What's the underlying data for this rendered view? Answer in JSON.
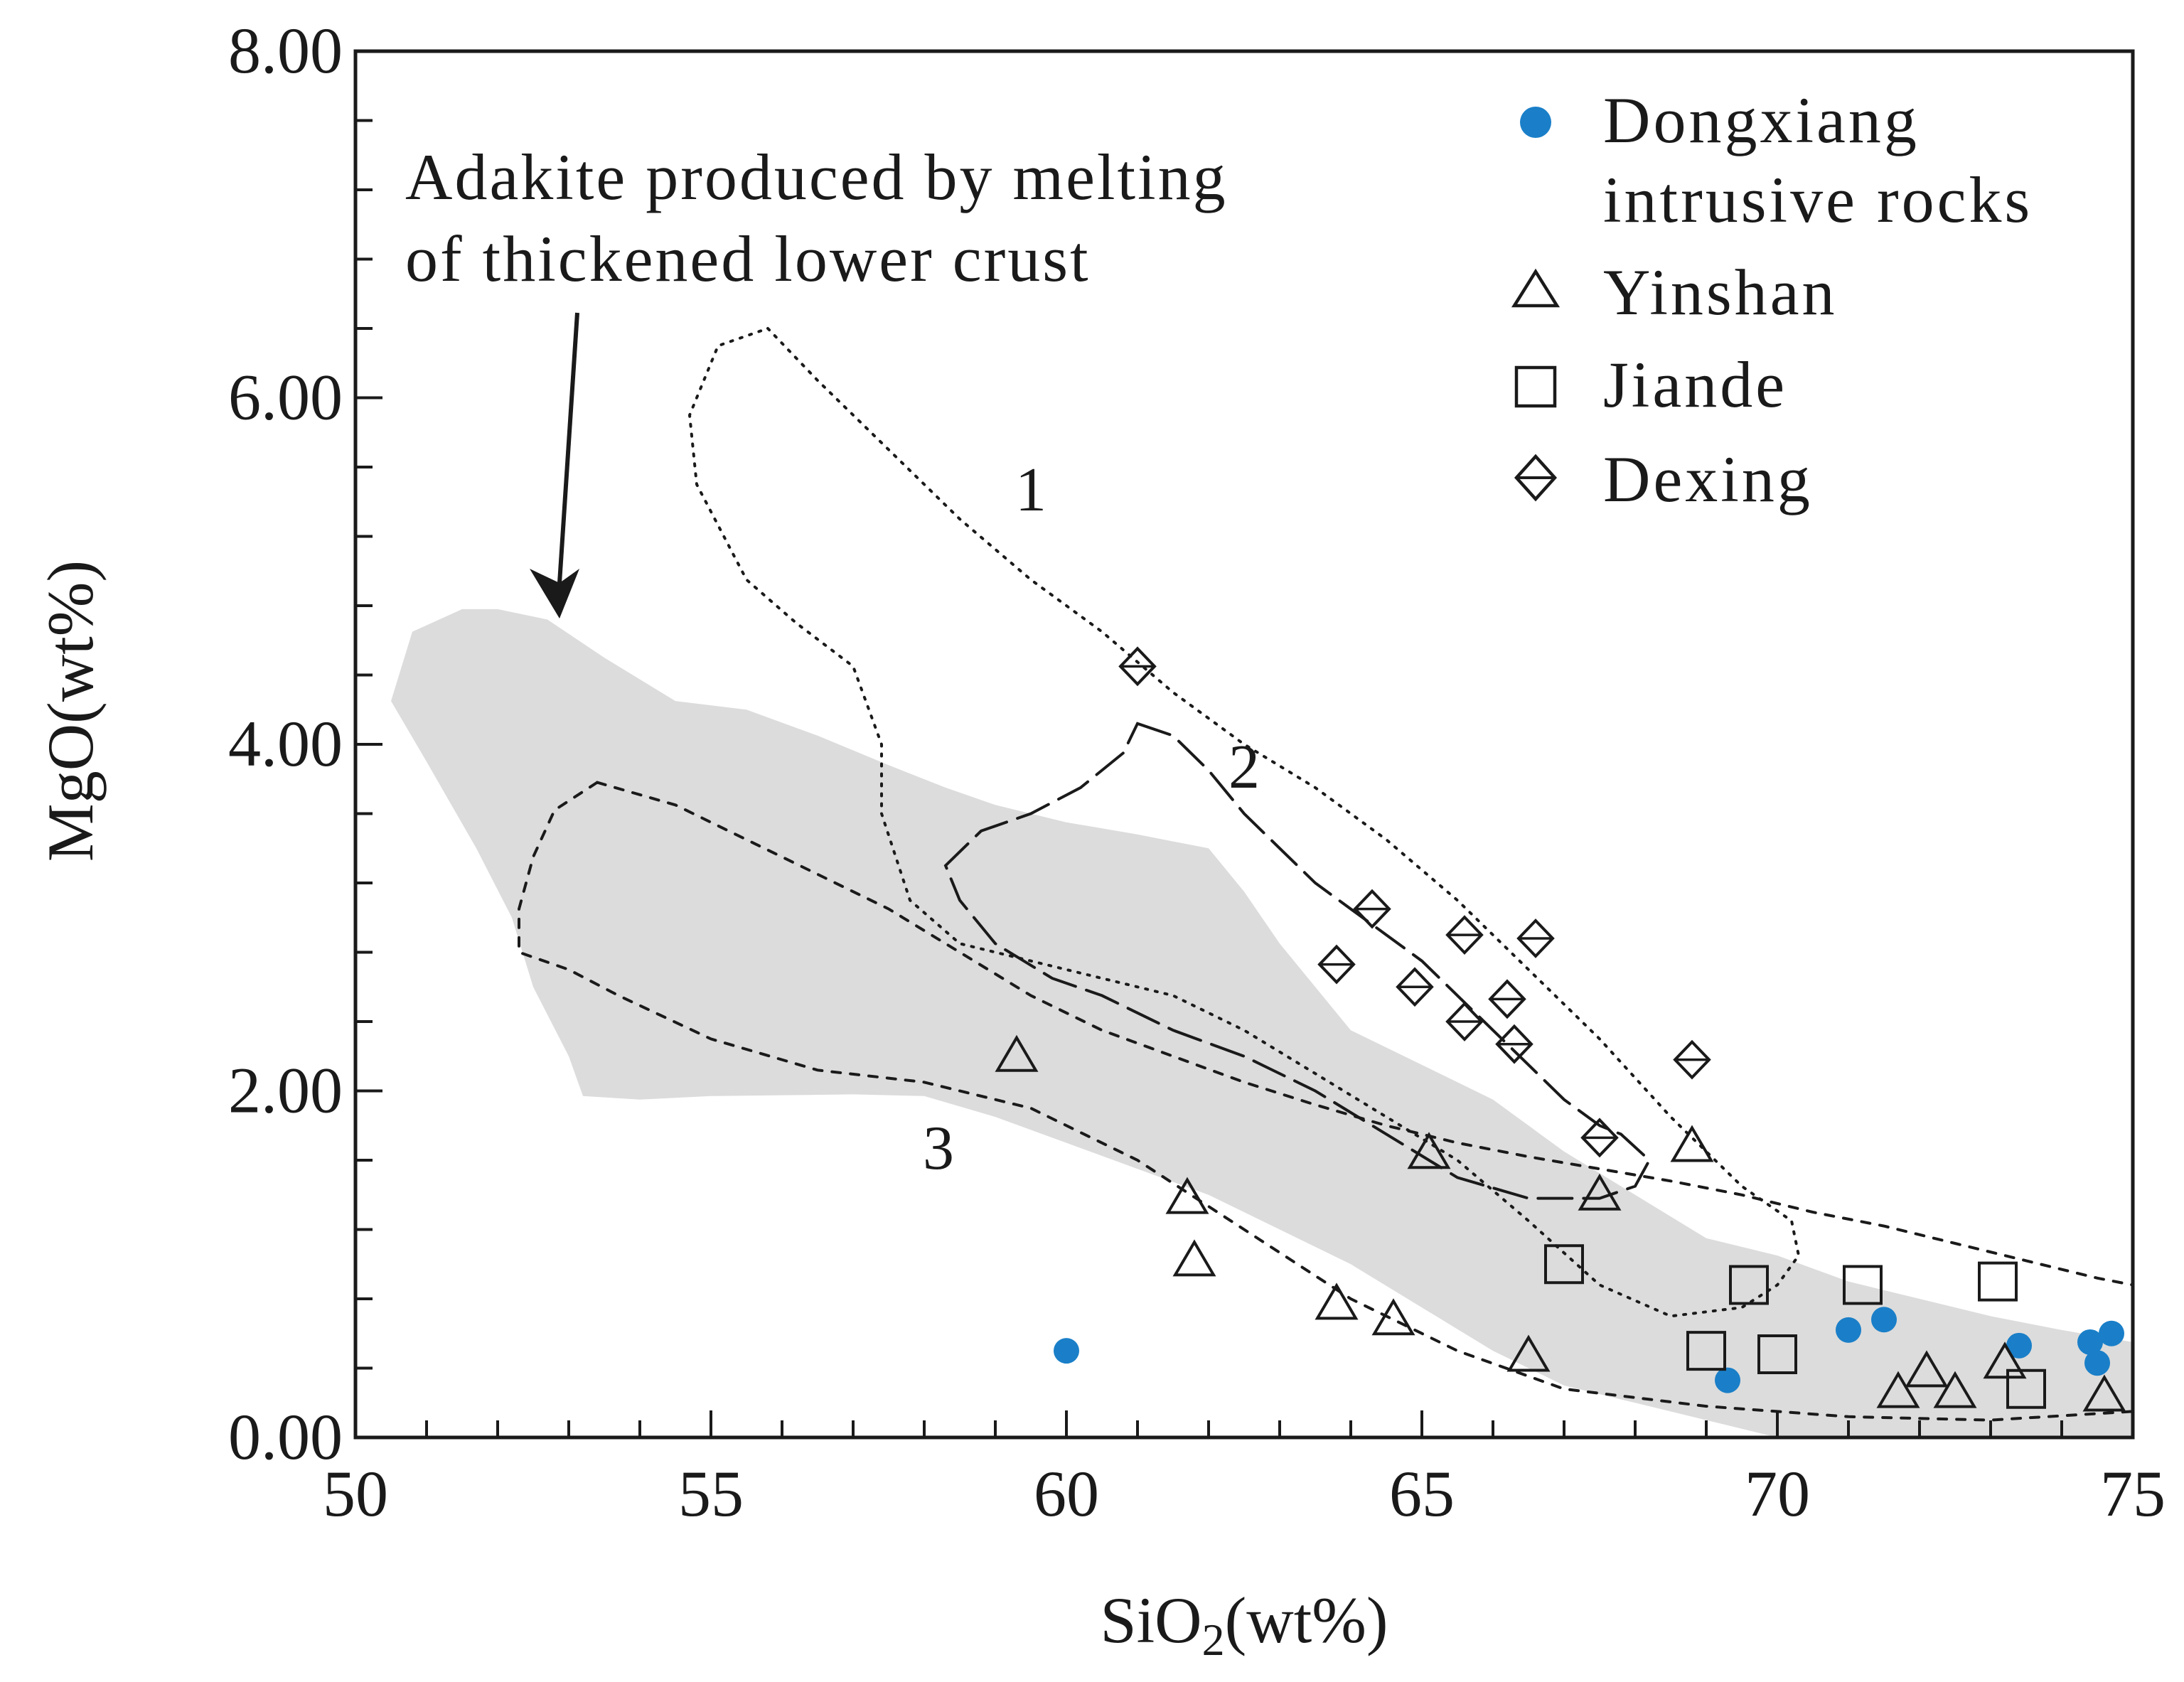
{
  "chart_data": {
    "type": "scatter",
    "xlabel": "SiO₂(wt%)",
    "ylabel": "MgO(wt%)",
    "xlim": [
      50,
      75
    ],
    "ylim": [
      0,
      8
    ],
    "x_ticks": [
      50,
      55,
      60,
      65,
      70,
      75
    ],
    "x_tick_labels": [
      "50",
      "55",
      "60",
      "65",
      "70",
      "75"
    ],
    "y_ticks": [
      0,
      2,
      4,
      6,
      8
    ],
    "y_tick_labels": [
      "0.00",
      "2.00",
      "4.00",
      "6.00",
      "8.00"
    ],
    "grid": false,
    "legend_position": "top-right",
    "annotation": {
      "lines": [
        "Adakite produced by melting",
        "of thickened lower crust"
      ]
    },
    "series": [
      {
        "name": "Dongxiang intrusive rocks",
        "legend_lines": [
          "Dongxiang",
          "intrusive rocks"
        ],
        "marker": "filled-circle",
        "color": "#1a7fc8",
        "points": [
          [
            60.0,
            0.5
          ],
          [
            69.3,
            0.33
          ],
          [
            71.0,
            0.62
          ],
          [
            71.5,
            0.68
          ],
          [
            73.4,
            0.53
          ],
          [
            74.4,
            0.55
          ],
          [
            74.5,
            0.43
          ],
          [
            74.7,
            0.6
          ]
        ]
      },
      {
        "name": "Yinshan",
        "legend_lines": [
          "Yinshan"
        ],
        "marker": "open-triangle",
        "color": "#1a1a1a",
        "points": [
          [
            59.3,
            2.2
          ],
          [
            61.7,
            1.38
          ],
          [
            61.8,
            1.02
          ],
          [
            63.8,
            0.77
          ],
          [
            64.6,
            0.68
          ],
          [
            65.1,
            1.64
          ],
          [
            66.5,
            0.47
          ],
          [
            67.5,
            1.4
          ],
          [
            68.8,
            1.68
          ],
          [
            71.7,
            0.26
          ],
          [
            72.1,
            0.38
          ],
          [
            72.5,
            0.26
          ],
          [
            73.2,
            0.43
          ],
          [
            74.6,
            0.24
          ]
        ]
      },
      {
        "name": "Jiande",
        "legend_lines": [
          "Jiande"
        ],
        "marker": "open-square",
        "color": "#1a1a1a",
        "points": [
          [
            67.0,
            1.0
          ],
          [
            69.0,
            0.5
          ],
          [
            69.6,
            0.88
          ],
          [
            70.0,
            0.48
          ],
          [
            71.2,
            0.88
          ],
          [
            73.1,
            0.9
          ],
          [
            73.5,
            0.28
          ]
        ]
      },
      {
        "name": "Dexing",
        "legend_lines": [
          "Dexing"
        ],
        "marker": "open-diamond",
        "color": "#1a1a1a",
        "points": [
          [
            61.0,
            4.45
          ],
          [
            63.8,
            2.73
          ],
          [
            64.3,
            3.05
          ],
          [
            64.9,
            2.6
          ],
          [
            65.6,
            2.9
          ],
          [
            65.6,
            2.4
          ],
          [
            66.2,
            2.53
          ],
          [
            66.3,
            2.27
          ],
          [
            66.6,
            2.88
          ],
          [
            67.5,
            1.73
          ],
          [
            68.8,
            2.18
          ]
        ]
      }
    ],
    "regions": [
      {
        "label": "Adakite field",
        "style": "filled-gray",
        "color": "#dcdcdc",
        "polygon": [
          [
            50.5,
            4.25
          ],
          [
            50.8,
            4.65
          ],
          [
            51.5,
            4.78
          ],
          [
            52.0,
            4.78
          ],
          [
            52.7,
            4.72
          ],
          [
            53.5,
            4.5
          ],
          [
            54.5,
            4.25
          ],
          [
            55.5,
            4.2
          ],
          [
            56.5,
            4.05
          ],
          [
            57.5,
            3.88
          ],
          [
            58.3,
            3.75
          ],
          [
            59.0,
            3.65
          ],
          [
            60.0,
            3.55
          ],
          [
            61.0,
            3.48
          ],
          [
            62.0,
            3.4
          ],
          [
            62.5,
            3.15
          ],
          [
            63.0,
            2.85
          ],
          [
            63.5,
            2.6
          ],
          [
            64.0,
            2.35
          ],
          [
            65.0,
            2.15
          ],
          [
            66.0,
            1.95
          ],
          [
            67.0,
            1.65
          ],
          [
            68.0,
            1.4
          ],
          [
            69.0,
            1.15
          ],
          [
            70.0,
            1.05
          ],
          [
            71.0,
            0.9
          ],
          [
            72.0,
            0.8
          ],
          [
            73.0,
            0.7
          ],
          [
            74.0,
            0.62
          ],
          [
            75.0,
            0.55
          ],
          [
            75.0,
            0.0
          ],
          [
            70.0,
            0.0
          ],
          [
            69.0,
            0.1
          ],
          [
            68.0,
            0.2
          ],
          [
            67.0,
            0.3
          ],
          [
            66.0,
            0.5
          ],
          [
            65.0,
            0.75
          ],
          [
            64.0,
            1.0
          ],
          [
            63.0,
            1.2
          ],
          [
            62.0,
            1.4
          ],
          [
            61.0,
            1.55
          ],
          [
            60.0,
            1.7
          ],
          [
            59.0,
            1.85
          ],
          [
            58.0,
            1.97
          ],
          [
            57.0,
            1.98
          ],
          [
            55.0,
            1.97
          ],
          [
            54.0,
            1.95
          ],
          [
            53.2,
            1.97
          ],
          [
            53.0,
            2.2
          ],
          [
            52.5,
            2.6
          ],
          [
            52.2,
            3.0
          ],
          [
            51.7,
            3.4
          ],
          [
            51.0,
            3.9
          ]
        ]
      },
      {
        "label": "1",
        "style": "dotted",
        "polygon": [
          [
            55.8,
            6.4
          ],
          [
            56.5,
            6.1
          ],
          [
            57.5,
            5.7
          ],
          [
            58.5,
            5.3
          ],
          [
            59.5,
            4.95
          ],
          [
            60.5,
            4.65
          ],
          [
            61.5,
            4.3
          ],
          [
            62.5,
            4.0
          ],
          [
            63.5,
            3.75
          ],
          [
            64.5,
            3.45
          ],
          [
            65.5,
            3.1
          ],
          [
            66.5,
            2.7
          ],
          [
            67.5,
            2.3
          ],
          [
            68.5,
            1.85
          ],
          [
            69.5,
            1.45
          ],
          [
            70.2,
            1.25
          ],
          [
            70.3,
            1.05
          ],
          [
            70.0,
            0.88
          ],
          [
            69.5,
            0.75
          ],
          [
            68.5,
            0.7
          ],
          [
            67.5,
            0.88
          ],
          [
            66.5,
            1.25
          ],
          [
            65.5,
            1.6
          ],
          [
            64.5,
            1.85
          ],
          [
            63.5,
            2.1
          ],
          [
            62.5,
            2.35
          ],
          [
            61.5,
            2.55
          ],
          [
            60.5,
            2.65
          ],
          [
            59.5,
            2.75
          ],
          [
            58.5,
            2.85
          ],
          [
            57.8,
            3.1
          ],
          [
            57.4,
            3.6
          ],
          [
            57.4,
            4.0
          ],
          [
            57.0,
            4.45
          ],
          [
            56.2,
            4.7
          ],
          [
            55.5,
            4.95
          ],
          [
            54.8,
            5.5
          ],
          [
            54.7,
            5.9
          ],
          [
            55.1,
            6.3
          ]
        ]
      },
      {
        "label": "2",
        "style": "dashed",
        "polygon": [
          [
            61.0,
            4.12
          ],
          [
            61.5,
            4.05
          ],
          [
            62.0,
            3.85
          ],
          [
            62.5,
            3.6
          ],
          [
            63.0,
            3.4
          ],
          [
            63.5,
            3.2
          ],
          [
            64.0,
            3.05
          ],
          [
            64.5,
            2.9
          ],
          [
            65.0,
            2.75
          ],
          [
            65.5,
            2.55
          ],
          [
            66.0,
            2.35
          ],
          [
            66.5,
            2.15
          ],
          [
            67.0,
            1.95
          ],
          [
            67.5,
            1.8
          ],
          [
            67.8,
            1.75
          ],
          [
            68.2,
            1.6
          ],
          [
            68.0,
            1.45
          ],
          [
            67.5,
            1.38
          ],
          [
            66.5,
            1.38
          ],
          [
            65.5,
            1.5
          ],
          [
            64.5,
            1.75
          ],
          [
            63.5,
            2.0
          ],
          [
            62.5,
            2.2
          ],
          [
            61.5,
            2.35
          ],
          [
            60.5,
            2.55
          ],
          [
            59.8,
            2.65
          ],
          [
            59.0,
            2.85
          ],
          [
            58.5,
            3.1
          ],
          [
            58.3,
            3.3
          ],
          [
            58.8,
            3.5
          ],
          [
            59.5,
            3.6
          ],
          [
            60.2,
            3.75
          ],
          [
            60.8,
            3.95
          ]
        ]
      },
      {
        "label": "3",
        "style": "short-dashed",
        "polygon": [
          [
            53.4,
            3.78
          ],
          [
            54.5,
            3.65
          ],
          [
            55.5,
            3.45
          ],
          [
            56.5,
            3.25
          ],
          [
            57.5,
            3.05
          ],
          [
            58.5,
            2.8
          ],
          [
            59.5,
            2.55
          ],
          [
            60.5,
            2.35
          ],
          [
            61.5,
            2.2
          ],
          [
            62.5,
            2.05
          ],
          [
            63.5,
            1.92
          ],
          [
            64.5,
            1.8
          ],
          [
            65.5,
            1.7
          ],
          [
            66.5,
            1.62
          ],
          [
            67.5,
            1.55
          ],
          [
            68.5,
            1.48
          ],
          [
            69.5,
            1.4
          ],
          [
            70.5,
            1.3
          ],
          [
            71.5,
            1.22
          ],
          [
            72.5,
            1.12
          ],
          [
            73.5,
            1.02
          ],
          [
            74.5,
            0.92
          ],
          [
            75.0,
            0.88
          ],
          [
            75.0,
            0.15
          ],
          [
            73.0,
            0.1
          ],
          [
            71.0,
            0.12
          ],
          [
            69.0,
            0.18
          ],
          [
            67.0,
            0.28
          ],
          [
            65.5,
            0.5
          ],
          [
            64.0,
            0.8
          ],
          [
            62.5,
            1.2
          ],
          [
            61.0,
            1.6
          ],
          [
            59.5,
            1.9
          ],
          [
            58.0,
            2.05
          ],
          [
            56.5,
            2.12
          ],
          [
            55.0,
            2.3
          ],
          [
            53.7,
            2.55
          ],
          [
            53.0,
            2.7
          ],
          [
            52.3,
            2.8
          ],
          [
            52.3,
            3.05
          ],
          [
            52.5,
            3.35
          ],
          [
            52.8,
            3.62
          ]
        ]
      }
    ],
    "region_labels": [
      {
        "text": "1",
        "x": 59.5,
        "y": 5.35
      },
      {
        "text": "2",
        "x": 62.5,
        "y": 3.75
      },
      {
        "text": "3",
        "x": 58.2,
        "y": 1.55
      }
    ]
  }
}
